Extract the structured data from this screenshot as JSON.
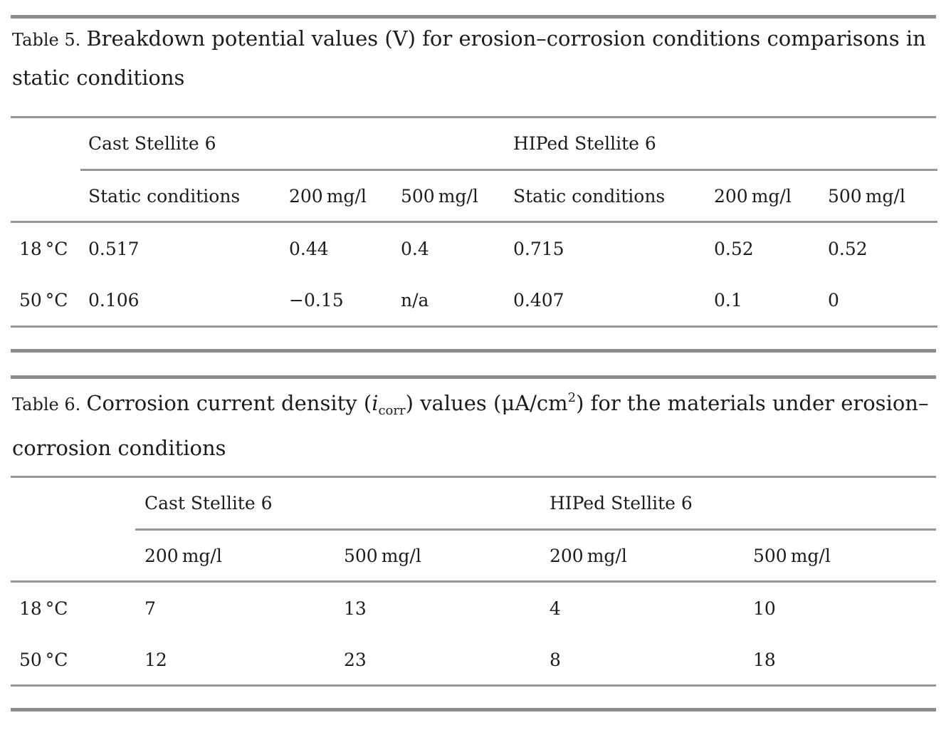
{
  "colors": {
    "background": "#ffffff",
    "text": "#1c1c1c",
    "rule_thick": "#8c8c8c",
    "rule_thin": "#979797"
  },
  "table5": {
    "caption_label": "Table 5.",
    "caption_line1": "Breakdown potential values (V) for erosion–corrosion conditions comparisons in",
    "caption_line2": "static conditions",
    "group_header_1": "Cast Stellite 6",
    "group_header_2": "HIPed Stellite 6",
    "subheaders": [
      "Static conditions",
      "200 mg/l",
      "500 mg/l",
      "Static conditions",
      "200 mg/l",
      "500 mg/l"
    ],
    "rows": [
      {
        "label": "18 °C",
        "v": [
          "0.517",
          "0.44",
          "0.4",
          "0.715",
          "0.52",
          "0.52"
        ]
      },
      {
        "label": "50 °C",
        "v": [
          "0.106",
          "−0.15",
          "n/a",
          "0.407",
          "0.1",
          "0"
        ]
      }
    ]
  },
  "table6": {
    "caption_label": "Table 6.",
    "caption_seg1": "Corrosion current density (",
    "caption_var": "i",
    "caption_sub": "corr",
    "caption_seg2": ") values (μA/cm",
    "caption_sup": "2",
    "caption_seg3": ") for the materials under erosion–",
    "caption_line2": "corrosion conditions",
    "group_header_1": "Cast Stellite 6",
    "group_header_2": "HIPed Stellite 6",
    "subheaders": [
      "200 mg/l",
      "500 mg/l",
      "200 mg/l",
      "500 mg/l"
    ],
    "rows": [
      {
        "label": "18 °C",
        "v": [
          "7",
          "13",
          "4",
          "10"
        ]
      },
      {
        "label": "50 °C",
        "v": [
          "12",
          "23",
          "8",
          "18"
        ]
      }
    ]
  }
}
